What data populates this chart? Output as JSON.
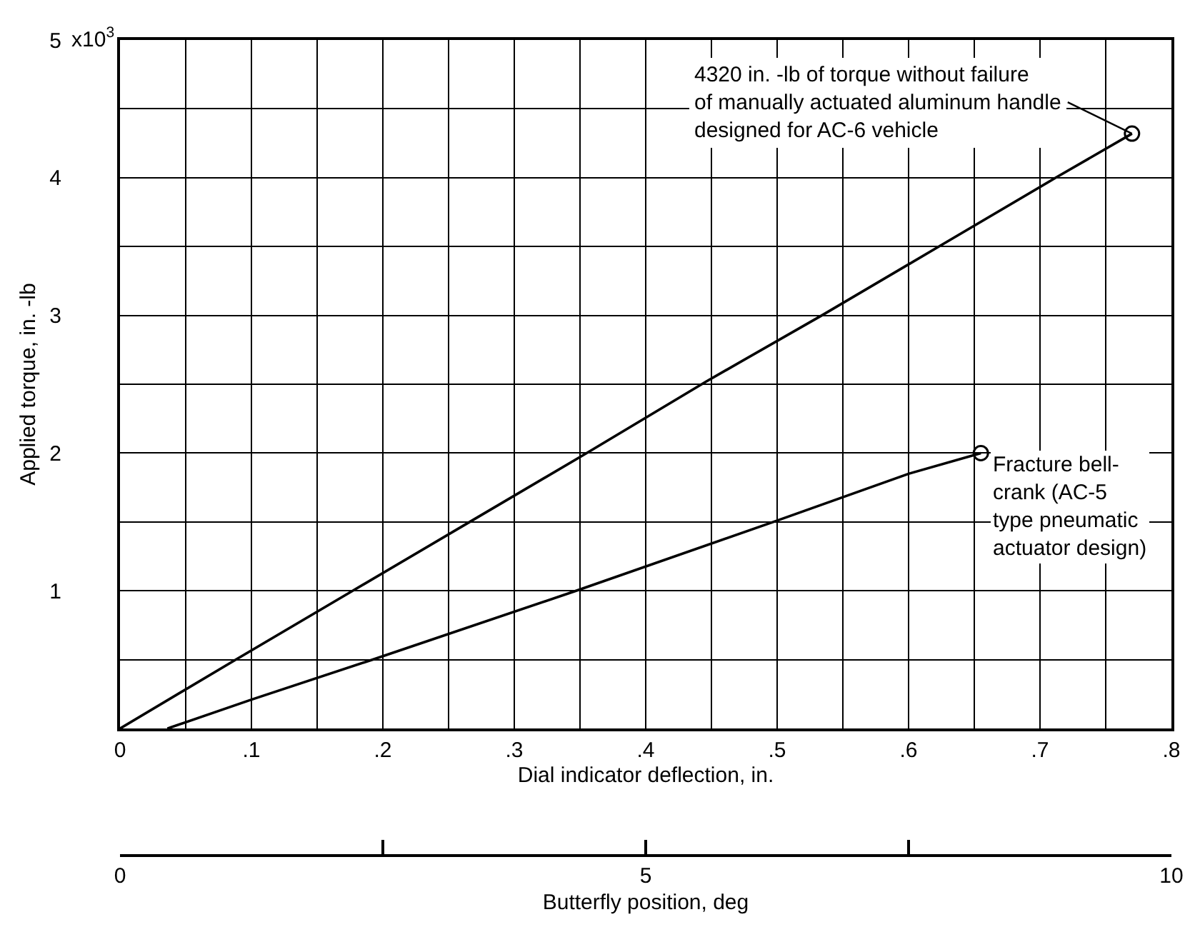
{
  "chart_data": {
    "type": "line",
    "xlabel": "Dial indicator deflection, in.",
    "ylabel": "Applied torque, in. -lb",
    "x2label": "Butterfly position, deg",
    "series": [
      {
        "color": "#000000",
        "x": [
          0,
          0.088,
          0.177,
          0.266,
          0.355,
          0.446,
          0.534,
          0.623,
          0.712,
          0.77
        ],
        "values": [
          0,
          0.5,
          1.0,
          1.5,
          2.0,
          2.52,
          3.0,
          3.5,
          4.0,
          4.32
        ]
      },
      {
        "color": "#000000",
        "x": [
          0.036,
          0.1,
          0.192,
          0.347,
          0.497,
          0.6,
          0.655
        ],
        "values": [
          0,
          0.21,
          0.5,
          1.0,
          1.5,
          1.85,
          2.0
        ]
      },
      {
        "type": "scatter",
        "marker": "circle",
        "color": "#000000",
        "x": [
          0.77,
          0.655
        ],
        "values": [
          4.32,
          2.0
        ]
      }
    ],
    "xlim": [
      0,
      0.8
    ],
    "ylim": [
      0,
      5
    ],
    "x2lim": [
      0,
      10
    ],
    "xticks": [
      0,
      {
        "value": 0.05,
        "label": null
      },
      {
        "value": 0.1,
        "label": ".1"
      },
      {
        "value": 0.15,
        "label": null
      },
      {
        "value": 0.2,
        "label": ".2"
      },
      {
        "value": 0.25,
        "label": null
      },
      {
        "value": 0.3,
        "label": ".3"
      },
      {
        "value": 0.35,
        "label": null
      },
      {
        "value": 0.4,
        "label": ".4"
      },
      {
        "value": 0.45,
        "label": null
      },
      {
        "value": 0.5,
        "label": ".5"
      },
      {
        "value": 0.55,
        "label": null
      },
      {
        "value": 0.6,
        "label": ".6"
      },
      {
        "value": 0.65,
        "label": null
      },
      {
        "value": 0.7,
        "label": ".7"
      },
      {
        "value": 0.75,
        "label": null
      },
      {
        "value": 0.8,
        "label": ".8"
      }
    ],
    "yticks": [
      {
        "value": 0,
        "label": null
      },
      {
        "value": 0.5,
        "label": null
      },
      1,
      {
        "value": 1.5,
        "label": null
      },
      2,
      {
        "value": 2.5,
        "label": null
      },
      3,
      {
        "value": 3.5,
        "label": null
      },
      4,
      {
        "value": 4.5,
        "label": null
      },
      5
    ],
    "x2ticks": [
      0,
      {
        "value": 2.5,
        "label": null
      },
      5,
      {
        "value": 7.5,
        "label": null
      },
      10
    ],
    "grid": true,
    "annotations": [
      {
        "text": "4320 in. -lb of torque without failure\nof manually actuated aluminum handle\ndesigned for AC-6 vehicle",
        "x": 0.77,
        "y": 4.32
      },
      {
        "text": "Fracture bell-\ncrank (AC-5\ntype pneumatic\nactuator design)",
        "x": 0.655,
        "y": 2.0
      },
      "x10$^{3}$"
    ]
  }
}
